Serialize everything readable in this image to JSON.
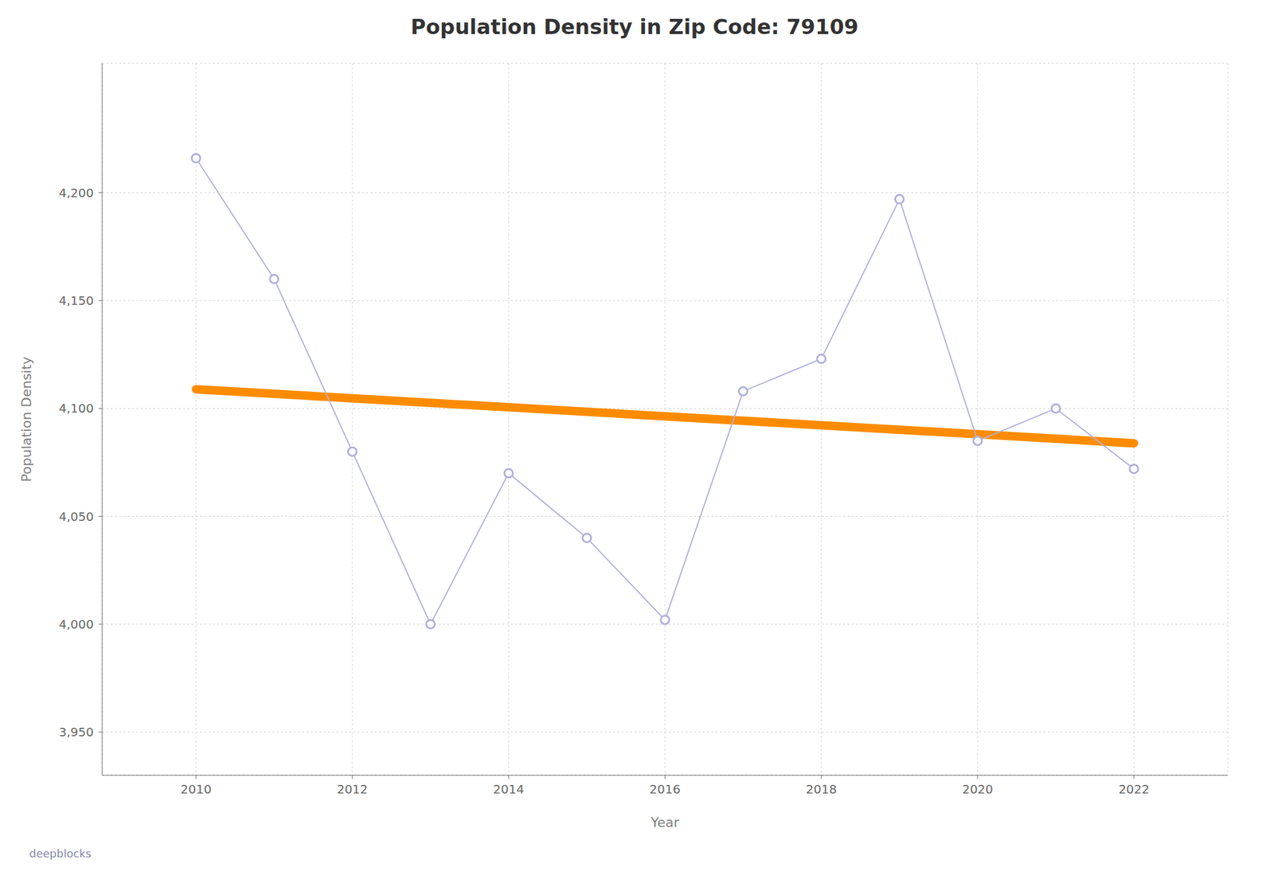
{
  "chart_data": {
    "type": "line",
    "title": "Population Density in Zip Code: 79109",
    "xlabel": "Year",
    "ylabel": "Population Density",
    "annotations": [
      "deepblocks"
    ],
    "x": [
      2010,
      2011,
      2012,
      2013,
      2014,
      2015,
      2016,
      2017,
      2018,
      2019,
      2020,
      2021,
      2022
    ],
    "values": [
      4216,
      4160,
      4080,
      4000,
      4070,
      4040,
      4002,
      4108,
      4123,
      4197,
      4085,
      4100,
      4072
    ],
    "color": "#b0b0dd",
    "marker": "circle",
    "trend": {
      "x": [
        2010,
        2022
      ],
      "values": [
        4108.8791,
        4083.8901
      ],
      "color": "#ff8c00"
    },
    "xlim": [
      2008.8,
      2023.2
    ],
    "xticks": [
      2010,
      2012,
      2014,
      2016,
      2018,
      2020,
      2022
    ],
    "ylim": [
      3930,
      4260
    ],
    "yticks": [
      {
        "value": 3950,
        "label": "3,950"
      },
      {
        "value": 4000,
        "label": "4,000"
      },
      {
        "value": 4050,
        "label": "4,050"
      },
      {
        "value": 4100,
        "label": "4,100"
      },
      {
        "value": 4150,
        "label": "4,150"
      },
      {
        "value": 4200,
        "label": "4,200"
      }
    ],
    "grid": true
  }
}
